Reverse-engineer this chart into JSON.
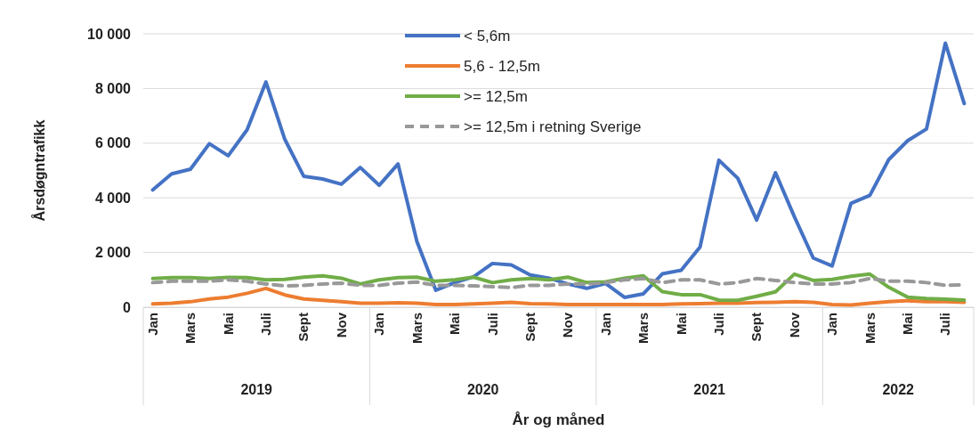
{
  "chart_data": {
    "type": "line",
    "ylabel": "Årsdøgntrafikk",
    "xlabel": "År og måned",
    "categories": [
      "Jan",
      null,
      "Mars",
      null,
      "Mai",
      null,
      "Juli",
      null,
      "Sept",
      null,
      "Nov",
      null,
      "Jan",
      null,
      "Mars",
      null,
      "Mai",
      null,
      "Juli",
      null,
      "Sept",
      null,
      "Nov",
      null,
      "Jan",
      null,
      "Mars",
      null,
      "Mai",
      null,
      "Juli",
      null,
      "Sept",
      null,
      "Nov",
      null,
      "Jan",
      null,
      "Mars",
      null,
      "Mai",
      null,
      "Juli",
      null
    ],
    "series": [
      {
        "name": "< 5,6m",
        "color": "#4472c4",
        "line_style": "solid",
        "values": [
          4290,
          4880,
          5050,
          5980,
          5540,
          6490,
          8240,
          6140,
          4790,
          4690,
          4500,
          5110,
          4460,
          5240,
          2400,
          620,
          900,
          1110,
          1600,
          1550,
          1180,
          1060,
          850,
          690,
          870,
          360,
          490,
          1220,
          1350,
          2200,
          5380,
          4720,
          3190,
          4920,
          3310,
          1800,
          1510,
          3800,
          4090,
          5400,
          6090,
          6520,
          9660,
          7450
        ]
      },
      {
        "name": "5,6 - 12,5m",
        "color": "#ed7d31",
        "line_style": "solid",
        "values": [
          120,
          150,
          200,
          300,
          370,
          510,
          690,
          450,
          300,
          250,
          200,
          150,
          150,
          160,
          150,
          100,
          100,
          120,
          150,
          180,
          130,
          120,
          100,
          100,
          100,
          100,
          100,
          100,
          120,
          130,
          150,
          150,
          170,
          180,
          200,
          180,
          100,
          80,
          150,
          200,
          240,
          200,
          200,
          180
        ]
      },
      {
        "name": ">= 12,5m",
        "color": "#70ad47",
        "line_style": "solid",
        "values": [
          1050,
          1080,
          1080,
          1050,
          1090,
          1080,
          1000,
          1020,
          1100,
          1150,
          1060,
          850,
          1000,
          1080,
          1100,
          950,
          1000,
          1100,
          900,
          1000,
          1050,
          1000,
          1100,
          900,
          930,
          1060,
          1150,
          570,
          460,
          460,
          260,
          250,
          400,
          560,
          1210,
          980,
          1020,
          1130,
          1210,
          730,
          370,
          320,
          290,
          260
        ]
      },
      {
        "name": ">= 12,5m i retning Sverige",
        "color": "#999999",
        "line_style": "dashed",
        "values": [
          900,
          950,
          950,
          950,
          1000,
          950,
          850,
          780,
          800,
          850,
          880,
          800,
          800,
          880,
          920,
          800,
          800,
          780,
          750,
          720,
          800,
          800,
          850,
          850,
          900,
          1000,
          1050,
          900,
          1000,
          1000,
          850,
          900,
          1050,
          980,
          900,
          850,
          850,
          900,
          1050,
          950,
          950,
          900,
          800,
          820
        ]
      }
    ],
    "ylim": [
      0,
      10000
    ],
    "yticks": [
      0,
      {
        "value": 2000,
        "label": "2 000"
      },
      {
        "value": 4000,
        "label": "4 000"
      },
      {
        "value": 6000,
        "label": "6 000"
      },
      {
        "value": 8000,
        "label": "8 000"
      },
      {
        "value": 10000,
        "label": "10 000"
      }
    ],
    "grid": "y",
    "legend": "top",
    "annotations": [
      "2019",
      "2020",
      "2021",
      "2022"
    ]
  }
}
